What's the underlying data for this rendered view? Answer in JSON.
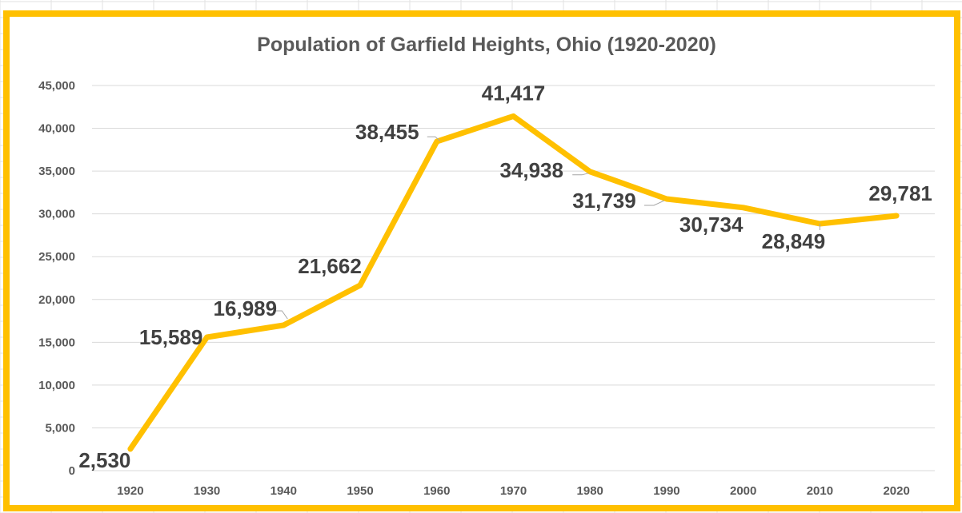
{
  "chart_data": {
    "type": "line",
    "title": "Population of Garfield Heights, Ohio (1920-2020)",
    "xlabel": "",
    "ylabel": "",
    "categories": [
      "1920",
      "1930",
      "1940",
      "1950",
      "1960",
      "1970",
      "1980",
      "1990",
      "2000",
      "2010",
      "2020"
    ],
    "series": [
      {
        "values": [
          2530,
          15589,
          16989,
          21662,
          38455,
          41417,
          34938,
          31739,
          30734,
          28849,
          29781
        ],
        "color": "#FFC000"
      }
    ],
    "data_labels": [
      "2,530",
      "15,589",
      "16,989",
      "21,662",
      "38,455",
      "41,417",
      "34,938",
      "31,739",
      "30,734",
      "28,849",
      "29,781"
    ],
    "ylim": [
      0,
      45000
    ],
    "yticks": [
      0,
      5000,
      10000,
      15000,
      20000,
      25000,
      30000,
      35000,
      40000,
      45000
    ],
    "ytick_labels": [
      "0",
      "5,000",
      "10,000",
      "15,000",
      "20,000",
      "25,000",
      "30,000",
      "35,000",
      "40,000",
      "45,000"
    ],
    "grid": true,
    "legend": "none",
    "colors": {
      "frame": "#FFC000",
      "line": "#FFC000",
      "grid": "#D9D9D9",
      "text": "#595959",
      "label": "#404040"
    }
  }
}
